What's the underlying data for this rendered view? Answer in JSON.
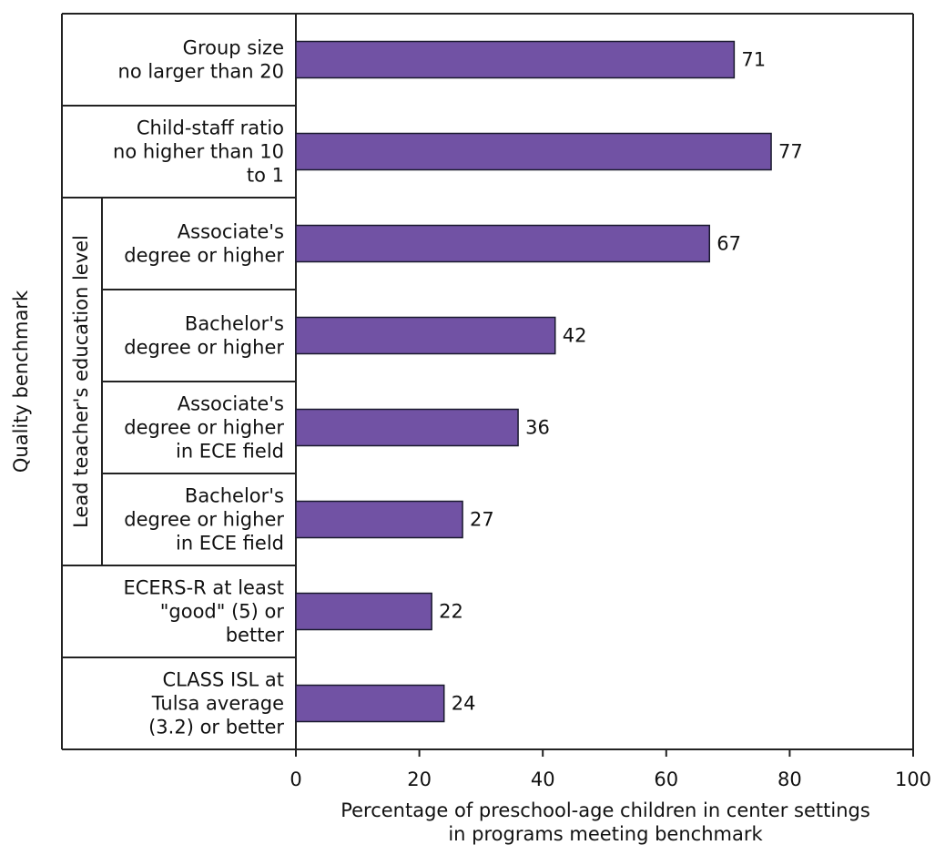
{
  "chart_data": {
    "type": "bar",
    "orientation": "horizontal",
    "categories": [
      [
        "Group size",
        "no larger than 20"
      ],
      [
        "Child-staff ratio",
        "no higher than 10",
        "to 1"
      ],
      [
        "Associate's",
        "degree or higher"
      ],
      [
        "Bachelor's",
        "degree or higher"
      ],
      [
        "Associate's",
        "degree or higher",
        "in ECE field"
      ],
      [
        "Bachelor's",
        "degree or higher",
        "in ECE field"
      ],
      [
        "ECERS-R at least",
        "\"good\" (5) or",
        "better"
      ],
      [
        "CLASS ISL at",
        "Tulsa average",
        "(3.2) or better"
      ]
    ],
    "values": [
      71,
      77,
      67,
      42,
      36,
      27,
      22,
      24
    ],
    "group_label": "Lead teacher's education level",
    "group_span": [
      2,
      5
    ],
    "xlabel": [
      "Percentage of preschool-age children in center settings",
      "in programs meeting benchmark"
    ],
    "ylabel": "Quality benchmark",
    "xlim": [
      0,
      100
    ],
    "xticks": [
      0,
      20,
      40,
      60,
      80,
      100
    ],
    "grid": false,
    "colors": {
      "bar": "#7152a4",
      "bar_edge": "#1a1a2e",
      "axis": "#222222"
    }
  }
}
